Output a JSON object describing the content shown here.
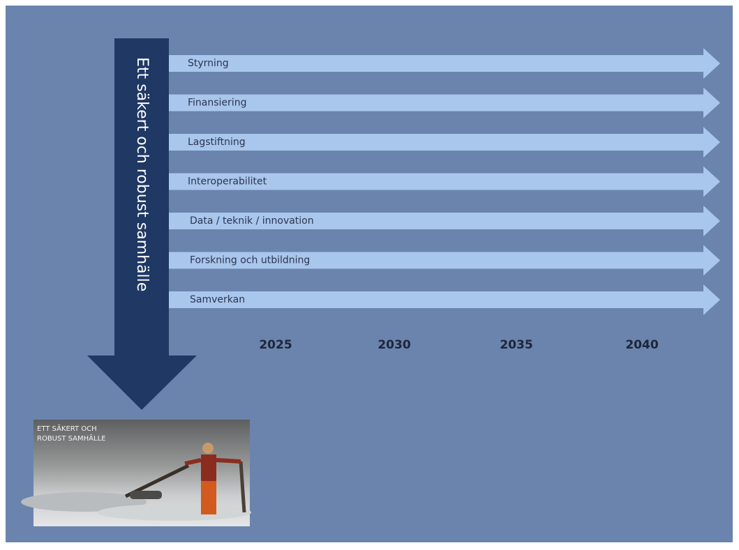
{
  "title": "Ett säkert och robust samhälle",
  "rows": [
    "Styrning",
    "Finansiering",
    "Lagstiftning",
    "Interoperabilitet",
    "Data / teknik / innovation",
    "Forskning och utbildning",
    "Samverkan"
  ],
  "years": [
    "2025",
    "2030",
    "2035",
    "2040"
  ],
  "photo": {
    "caption_lines": [
      "ETT SÄKERT OCH",
      "ROBUST SAMHÄLLE"
    ]
  }
}
